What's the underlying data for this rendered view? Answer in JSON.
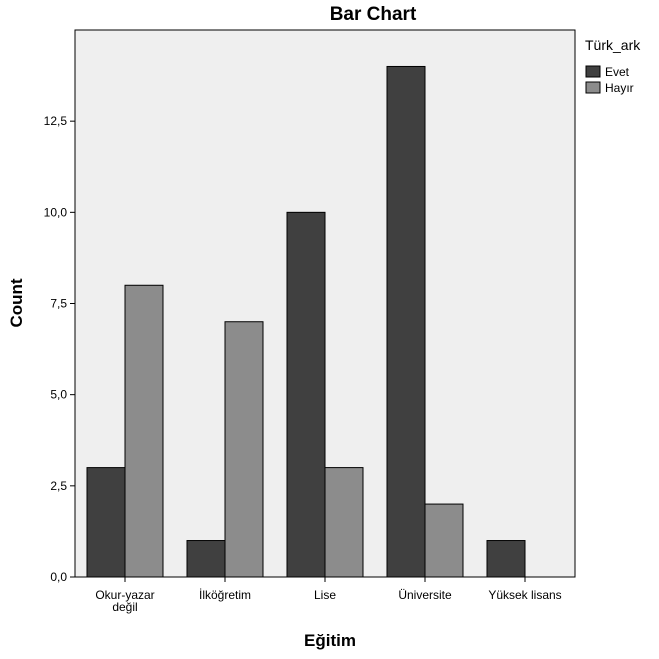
{
  "chart_data": {
    "type": "bar",
    "title": "Bar Chart",
    "xlabel": "Eğitim",
    "ylabel": "Count",
    "categories": [
      [
        "Okur-yazar",
        "değil"
      ],
      [
        "İlköğretim"
      ],
      [
        "Lise"
      ],
      [
        "Üniversite"
      ],
      [
        "Yüksek lisans"
      ]
    ],
    "series": [
      {
        "name": "Evet",
        "color": "#404040",
        "values": [
          3,
          1,
          10,
          14,
          1
        ]
      },
      {
        "name": "Hayır",
        "color": "#8c8c8c",
        "values": [
          8,
          7,
          3,
          2,
          0
        ]
      }
    ],
    "ylim": [
      0,
      15.0
    ],
    "yticks": [
      0,
      2.5,
      5.0,
      7.5,
      10.0,
      12.5
    ],
    "ytick_labels": [
      "0,0",
      "2,5",
      "5,0",
      "7,5",
      "10,0",
      "12,5"
    ],
    "legend": {
      "title": "Türk_ark",
      "placement": "right"
    },
    "grid": false,
    "plot_background": "#efefef"
  }
}
